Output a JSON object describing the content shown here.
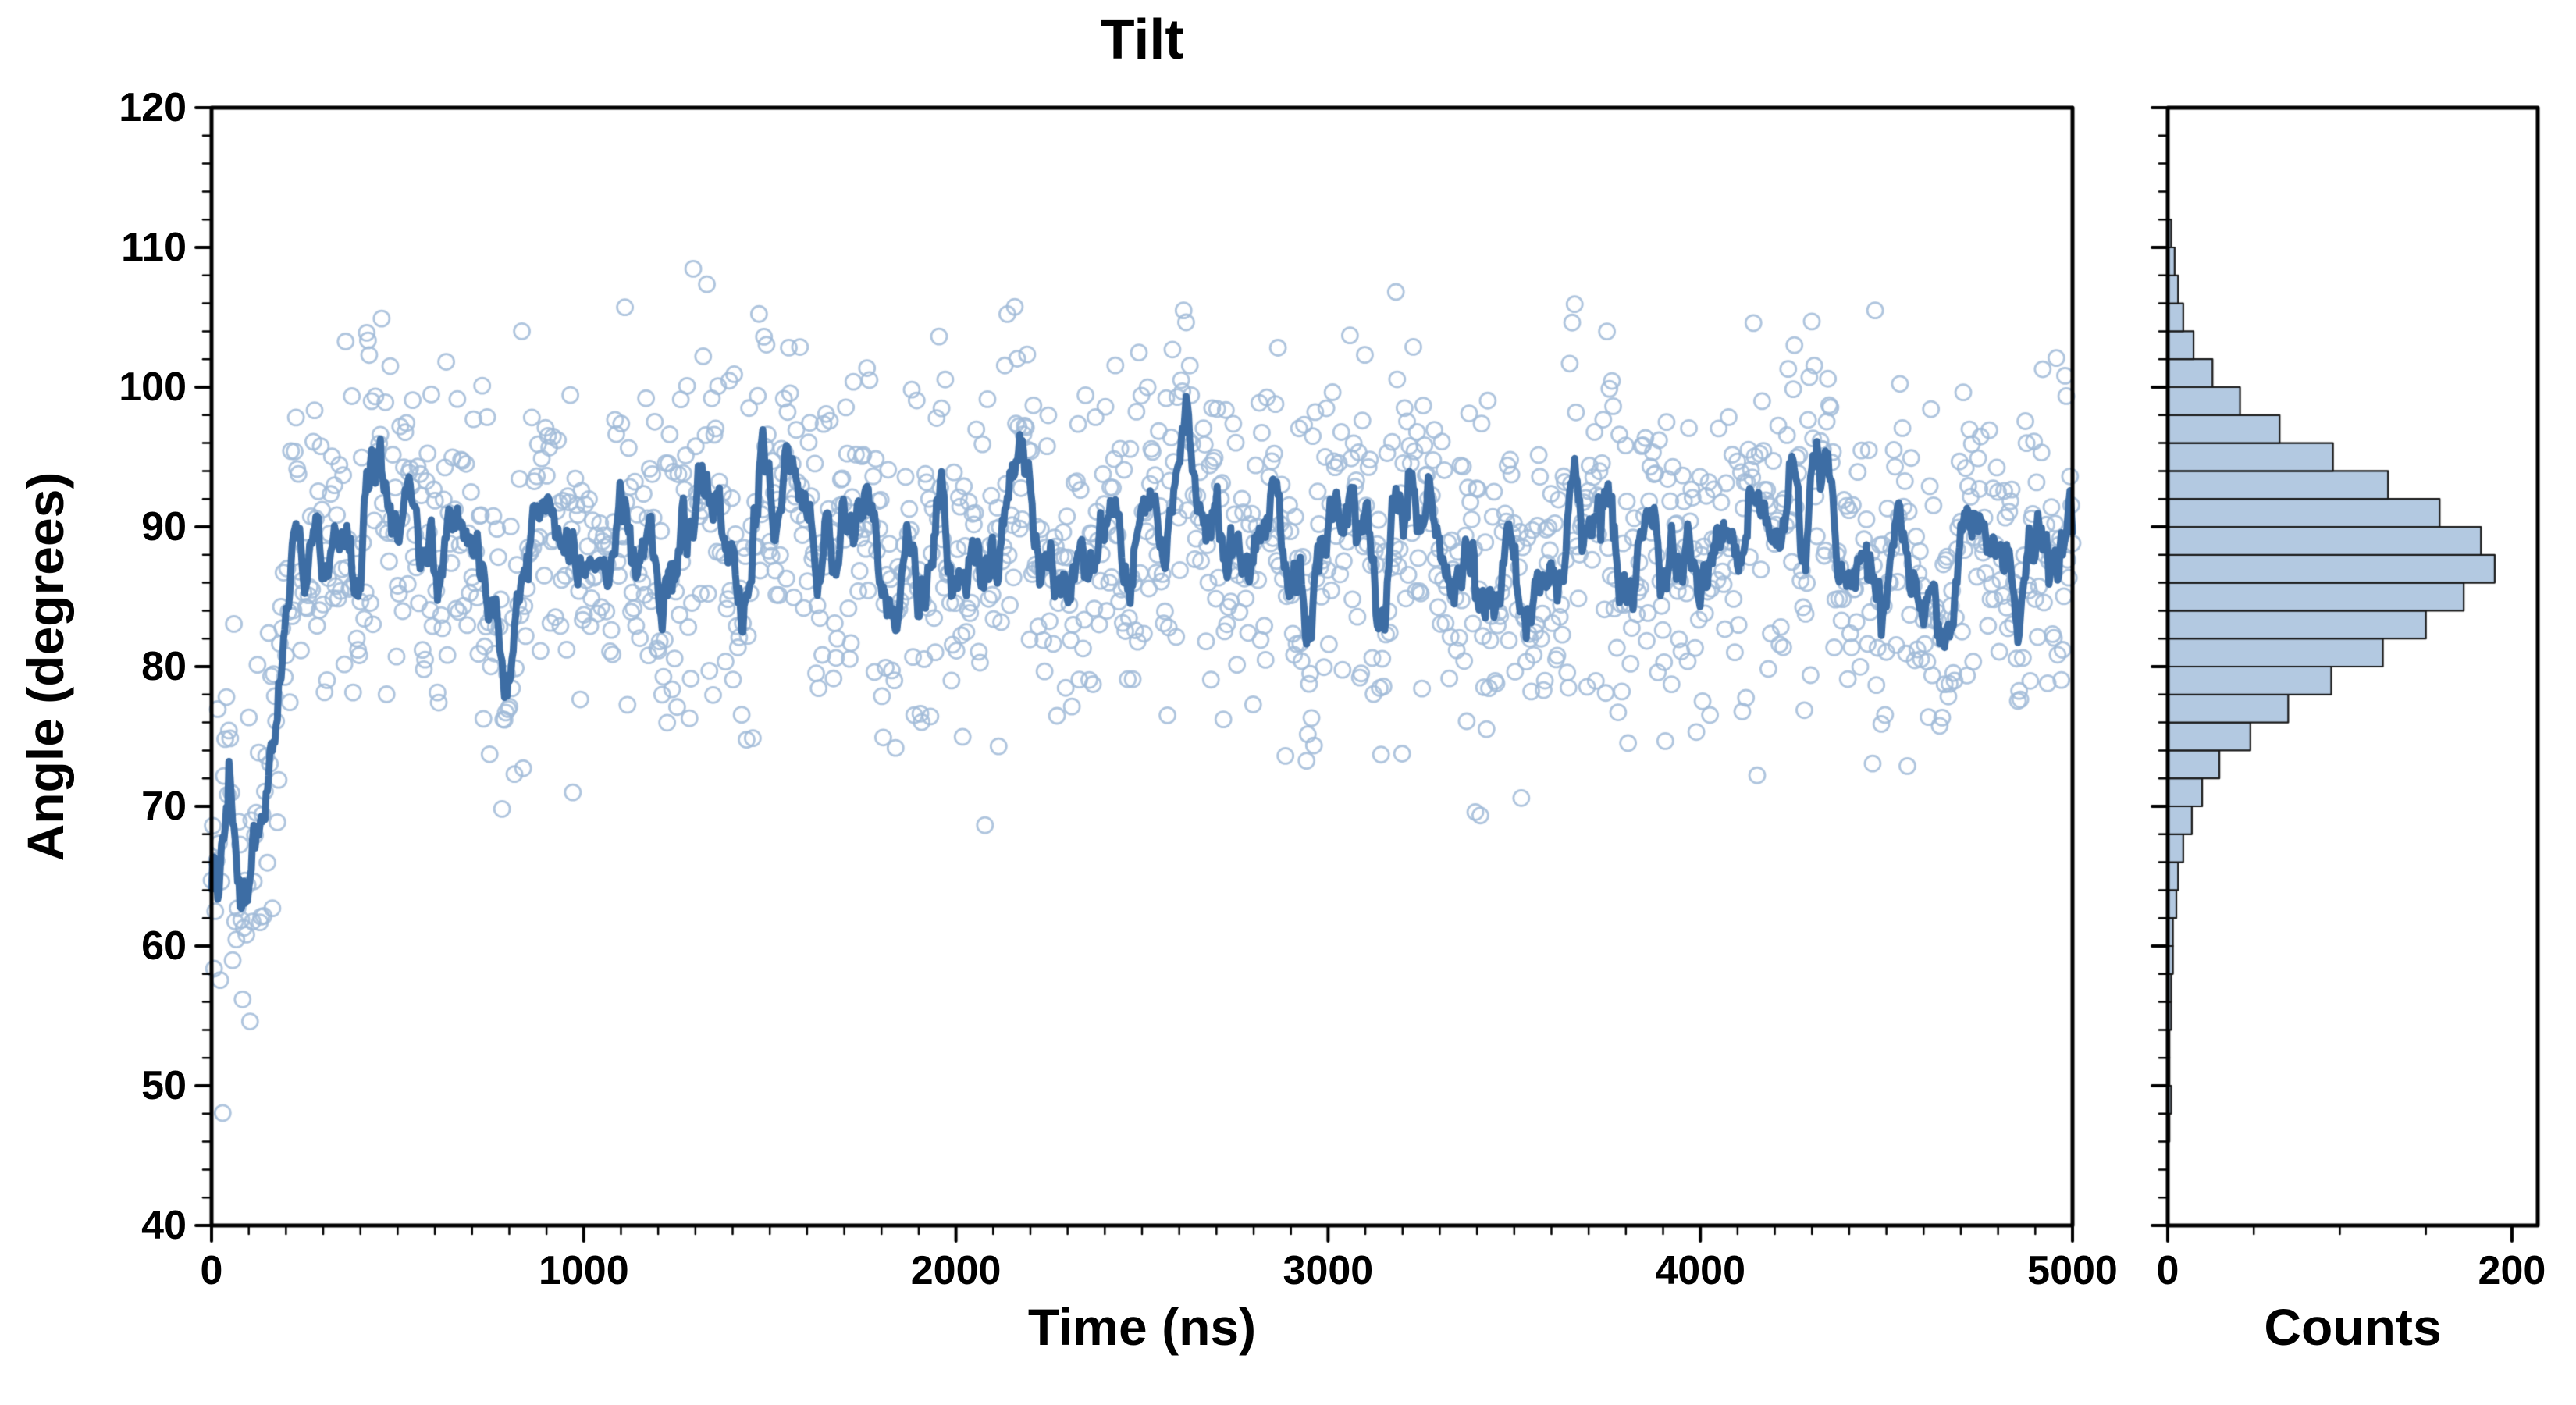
{
  "chart_data": {
    "type": "scatter",
    "title": "Tilt",
    "background": "#ffffff",
    "axis_color": "#000000",
    "main": {
      "xlabel": "Time (ns)",
      "ylabel": "Angle (degrees)",
      "xlim": [
        0,
        5000
      ],
      "ylim": [
        40,
        120
      ],
      "xticks": [
        0,
        1000,
        2000,
        3000,
        4000,
        5000
      ],
      "yticks": [
        40,
        50,
        60,
        70,
        80,
        90,
        100,
        110,
        120
      ],
      "x_minor_step": 100,
      "y_minor_step": 2,
      "scatter": {
        "n_points": 1500,
        "seed": 42,
        "noise_sigma": 6.3,
        "marker_radius": 10,
        "marker_line_width": 2.8,
        "alpha": 0.85,
        "color": "#a1bbd8",
        "baseline": [
          [
            0,
            68
          ],
          [
            40,
            64
          ],
          [
            90,
            63
          ],
          [
            140,
            73
          ],
          [
            200,
            84
          ],
          [
            280,
            89
          ],
          [
            400,
            89
          ],
          [
            5000,
            88
          ]
        ],
        "slow_waves": [
          [
            2.2,
            215,
            0.7
          ],
          [
            1.8,
            540,
            2.3
          ],
          [
            1.4,
            95,
            4.0
          ],
          [
            1.1,
            1350,
            1.2
          ]
        ]
      },
      "running_mean": {
        "window": 9,
        "color": "#3d6da4",
        "line_width": 9
      }
    },
    "hist": {
      "xlabel": "Counts",
      "xlim": [
        0,
        215
      ],
      "xticks": [
        0,
        200
      ],
      "x_minor_step": 50,
      "bin_start": 46,
      "bin_width": 2,
      "counts": [
        1,
        2,
        1,
        1,
        2,
        2,
        3,
        3,
        5,
        6,
        9,
        14,
        20,
        30,
        48,
        70,
        95,
        125,
        150,
        172,
        190,
        182,
        158,
        128,
        96,
        65,
        42,
        26,
        15,
        9,
        6,
        4,
        2
      ],
      "fill": "#b3c9e1",
      "edge": "#1a1a1a",
      "edge_width": 2.2
    }
  }
}
